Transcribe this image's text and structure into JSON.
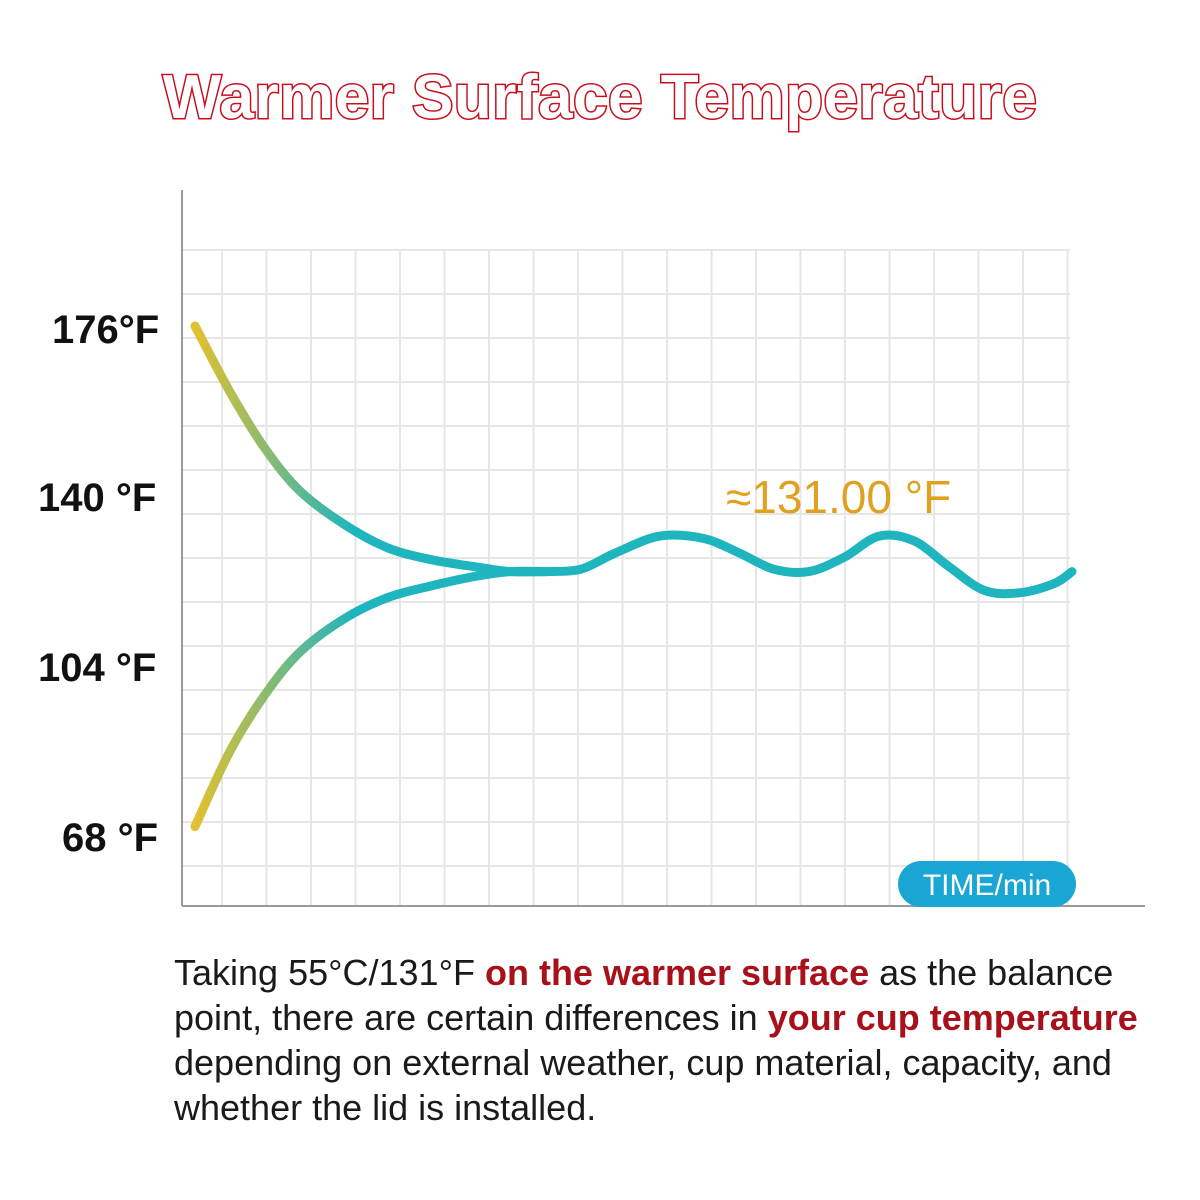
{
  "title": "Warmer Surface Temperature",
  "chart_data": {
    "type": "line",
    "title": "Warmer Surface Temperature",
    "xlabel": "TIME/min",
    "ylabel": "",
    "yticks": [
      "176°F",
      "140 °F",
      "104 °F",
      "68 °F"
    ],
    "ytick_values": [
      176,
      140,
      104,
      68
    ],
    "ylim": [
      52,
      200
    ],
    "xlim": [
      0,
      100
    ],
    "grid": true,
    "annotation": "≈131.00 °F",
    "series": [
      {
        "x": [
          0,
          4,
          8,
          12,
          17,
          22,
          27,
          32,
          36,
          40
        ],
        "values": [
          176,
          162,
          150,
          141,
          134,
          129,
          126.5,
          125,
          124,
          124
        ]
      },
      {
        "x": [
          0,
          4,
          8,
          12,
          17,
          22,
          27,
          32,
          36,
          40
        ],
        "values": [
          70,
          86,
          98,
          107,
          114,
          118.5,
          121,
          123,
          124,
          124
        ]
      },
      {
        "x": [
          40,
          44,
          48,
          53,
          58,
          62,
          66,
          70,
          74,
          78,
          82,
          86,
          90,
          94,
          98,
          100
        ],
        "values": [
          124,
          124.5,
          128,
          131.5,
          131,
          128,
          124.5,
          124,
          127,
          131.5,
          130.5,
          125,
          120,
          119.5,
          121.5,
          124
        ]
      }
    ]
  },
  "caption": {
    "p1": "Taking 55°C/131°F ",
    "h1": "on the warmer surface",
    "p2": " as the balance point, there are certain differences in ",
    "h2": "your cup temperature",
    "p3": " depending on external weather, cup material, capacity, and whether the lid is installed."
  },
  "colors": {
    "title_outline": "#c8101e",
    "curve_teal": "#1fb5bf",
    "curve_yellow": "#e3c02f",
    "annotation": "#e0a020",
    "time_badge": "#1aa6d4",
    "highlight_text": "#a8101a"
  }
}
